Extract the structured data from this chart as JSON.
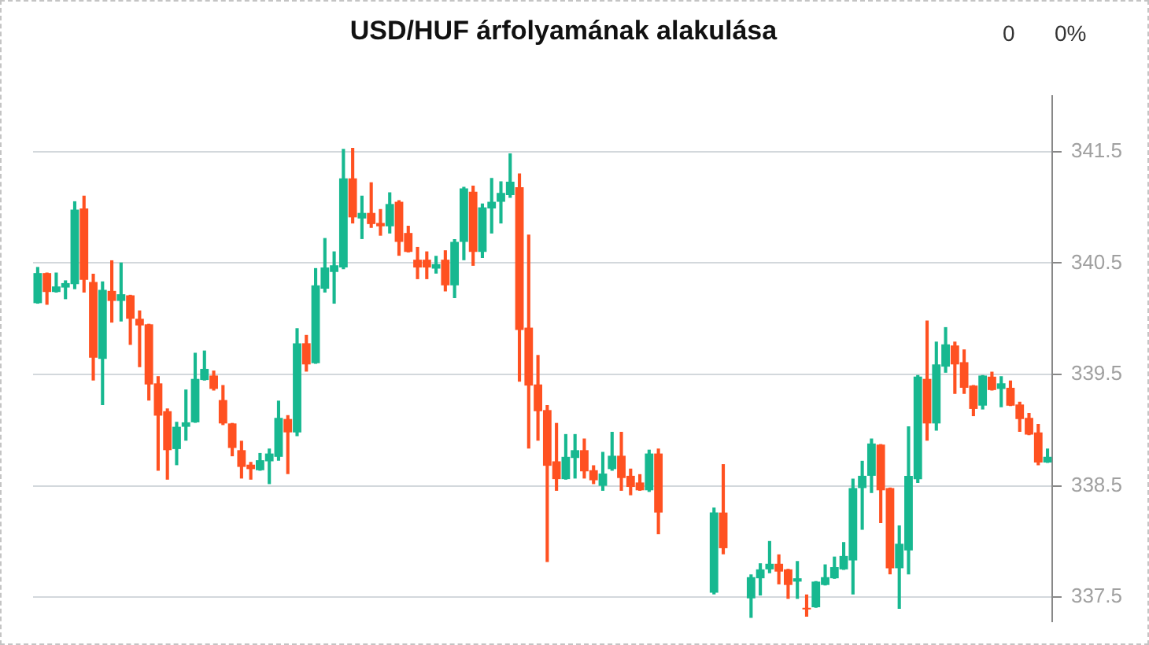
{
  "chart_data": {
    "type": "candlestick",
    "title": "USD/HUF árfolyamának alakulása",
    "annotations": [
      "0",
      "0%"
    ],
    "categories": [
      null,
      null,
      null,
      null,
      null,
      null,
      null,
      null,
      null,
      null,
      null,
      null,
      null,
      null,
      null,
      null,
      null,
      null,
      null,
      null,
      null,
      null,
      null,
      null,
      null,
      null,
      null,
      null,
      null,
      null,
      null,
      null,
      null,
      null,
      null,
      null,
      null,
      null,
      null,
      null,
      null,
      null,
      null,
      null,
      null,
      null,
      null,
      null,
      null,
      null,
      null,
      null,
      null,
      null,
      null,
      null,
      null,
      null,
      null,
      null,
      null,
      null,
      null,
      null,
      null,
      null,
      null,
      null,
      null,
      null,
      null,
      null,
      null,
      null,
      null,
      null,
      null,
      null,
      null,
      null,
      null,
      null,
      null,
      null,
      null,
      null,
      null,
      null,
      null,
      null,
      null,
      null,
      null,
      null,
      null,
      null,
      null,
      null,
      null,
      null,
      null,
      null,
      null,
      null,
      null,
      null,
      null,
      null,
      null,
      null
    ],
    "ohlc": [
      [
        340.14,
        340.46,
        340.14,
        340.41
      ],
      [
        340.41,
        340.41,
        340.13,
        340.24
      ],
      [
        340.24,
        340.41,
        340.24,
        340.29
      ],
      [
        340.28,
        340.34,
        340.18,
        340.32
      ],
      [
        340.31,
        341.05,
        340.27,
        340.98
      ],
      [
        340.99,
        341.1,
        340.24,
        340.35
      ],
      [
        340.33,
        340.4,
        339.45,
        339.65
      ],
      [
        339.64,
        340.33,
        339.23,
        340.26
      ],
      [
        340.25,
        340.52,
        339.97,
        340.16
      ],
      [
        340.16,
        340.5,
        339.98,
        340.22
      ],
      [
        340.21,
        340.21,
        339.77,
        340.0
      ],
      [
        340.0,
        340.07,
        339.57,
        339.94
      ],
      [
        339.95,
        339.95,
        339.27,
        339.41
      ],
      [
        339.42,
        339.48,
        338.64,
        339.13
      ],
      [
        339.17,
        339.19,
        338.56,
        338.82
      ],
      [
        338.83,
        339.07,
        338.69,
        339.03
      ],
      [
        339.03,
        339.36,
        338.91,
        339.07
      ],
      [
        339.07,
        339.69,
        339.07,
        339.46
      ],
      [
        339.45,
        339.71,
        339.45,
        339.55
      ],
      [
        339.49,
        339.53,
        339.36,
        339.37
      ],
      [
        339.27,
        339.4,
        339.05,
        339.06
      ],
      [
        339.06,
        339.06,
        338.77,
        338.84
      ],
      [
        338.82,
        338.9,
        338.57,
        338.67
      ],
      [
        338.69,
        338.71,
        338.56,
        338.65
      ],
      [
        338.64,
        338.79,
        338.64,
        338.73
      ],
      [
        338.72,
        338.83,
        338.52,
        338.79
      ],
      [
        338.76,
        339.26,
        338.73,
        339.11
      ],
      [
        339.1,
        339.13,
        338.61,
        338.98
      ],
      [
        338.98,
        339.91,
        338.95,
        339.78
      ],
      [
        339.78,
        339.85,
        339.53,
        339.59
      ],
      [
        339.6,
        340.45,
        339.6,
        340.3
      ],
      [
        340.27,
        340.72,
        340.24,
        340.46
      ],
      [
        340.42,
        340.6,
        340.14,
        340.48
      ],
      [
        340.46,
        341.52,
        340.45,
        341.26
      ],
      [
        341.26,
        341.53,
        340.86,
        340.91
      ],
      [
        340.9,
        341.1,
        340.72,
        340.95
      ],
      [
        340.95,
        341.22,
        340.82,
        340.85
      ],
      [
        340.86,
        340.98,
        340.75,
        340.83
      ],
      [
        340.83,
        341.13,
        340.77,
        341.03
      ],
      [
        341.05,
        341.06,
        340.57,
        340.69
      ],
      [
        340.77,
        340.83,
        340.6,
        340.6
      ],
      [
        340.53,
        340.64,
        340.36,
        340.46
      ],
      [
        340.53,
        340.6,
        340.36,
        340.46
      ],
      [
        340.45,
        340.56,
        340.41,
        340.49
      ],
      [
        340.53,
        340.61,
        340.25,
        340.3
      ],
      [
        340.3,
        340.71,
        340.19,
        340.69
      ],
      [
        340.69,
        341.18,
        340.53,
        341.17
      ],
      [
        341.14,
        341.19,
        340.48,
        340.6
      ],
      [
        340.6,
        341.03,
        340.55,
        341.0
      ],
      [
        340.99,
        341.26,
        340.77,
        341.05
      ],
      [
        341.05,
        341.23,
        340.86,
        341.13
      ],
      [
        341.11,
        341.48,
        341.09,
        341.23
      ],
      [
        341.18,
        341.3,
        339.44,
        339.9
      ],
      [
        339.92,
        340.75,
        338.84,
        339.4
      ],
      [
        339.41,
        339.67,
        338.91,
        339.17
      ],
      [
        339.18,
        339.22,
        337.82,
        338.68
      ],
      [
        338.72,
        339.06,
        338.46,
        338.56
      ],
      [
        338.56,
        338.96,
        338.56,
        338.76
      ],
      [
        338.75,
        338.96,
        338.57,
        338.82
      ],
      [
        338.82,
        338.92,
        338.57,
        338.63
      ],
      [
        338.64,
        338.68,
        338.52,
        338.55
      ],
      [
        338.5,
        338.8,
        338.46,
        338.61
      ],
      [
        338.65,
        338.98,
        338.64,
        338.77
      ],
      [
        338.77,
        338.98,
        338.46,
        338.57
      ],
      [
        338.59,
        338.65,
        338.42,
        338.49
      ],
      [
        338.53,
        338.6,
        338.46,
        338.46
      ],
      [
        338.46,
        338.82,
        338.45,
        338.79
      ],
      [
        338.79,
        338.83,
        338.07,
        338.26
      ],
      null,
      null,
      null,
      null,
      null,
      [
        337.54,
        338.3,
        337.53,
        338.26
      ],
      [
        338.26,
        338.69,
        337.89,
        337.94
      ],
      null,
      null,
      [
        337.49,
        337.7,
        337.32,
        337.68
      ],
      [
        337.67,
        337.8,
        337.52,
        337.75
      ],
      [
        337.75,
        338.0,
        337.72,
        337.8
      ],
      [
        337.8,
        337.88,
        337.62,
        337.73
      ],
      [
        337.75,
        337.75,
        337.49,
        337.61
      ],
      [
        337.64,
        337.82,
        337.49,
        337.67
      ],
      [
        337.4,
        337.52,
        337.33,
        337.39
      ],
      [
        337.41,
        337.64,
        337.41,
        337.64
      ],
      [
        337.61,
        337.79,
        337.61,
        337.68
      ],
      [
        337.67,
        337.86,
        337.67,
        337.77
      ],
      [
        337.75,
        337.99,
        337.75,
        337.87
      ],
      [
        337.83,
        338.56,
        337.53,
        338.48
      ],
      [
        338.48,
        338.72,
        338.11,
        338.59
      ],
      [
        338.59,
        338.92,
        338.44,
        338.88
      ],
      [
        338.87,
        338.87,
        338.17,
        338.46
      ],
      [
        338.48,
        338.48,
        337.71,
        337.76
      ],
      [
        337.76,
        338.14,
        337.4,
        337.98
      ],
      [
        337.92,
        339.03,
        337.71,
        338.59
      ],
      [
        338.56,
        339.49,
        338.53,
        339.48
      ],
      [
        339.46,
        339.98,
        338.91,
        339.06
      ],
      [
        339.06,
        339.79,
        339.0,
        339.59
      ],
      [
        339.57,
        339.92,
        339.52,
        339.77
      ],
      [
        339.76,
        339.79,
        339.33,
        339.59
      ],
      [
        339.61,
        339.72,
        339.33,
        339.38
      ],
      [
        339.4,
        339.4,
        339.13,
        339.19
      ],
      [
        339.22,
        339.49,
        339.19,
        339.49
      ],
      [
        339.48,
        339.52,
        339.36,
        339.36
      ],
      [
        339.37,
        339.48,
        339.21,
        339.42
      ],
      [
        339.38,
        339.44,
        339.22,
        339.22
      ],
      [
        339.23,
        339.25,
        338.99,
        339.1
      ],
      [
        339.11,
        339.15,
        338.96,
        338.96
      ],
      [
        338.98,
        339.05,
        338.69,
        338.71
      ],
      [
        338.71,
        338.83,
        338.71,
        338.76
      ]
    ],
    "colors": [
      "#17b890",
      "#ff5121",
      "#17b890",
      "#17b890",
      "#17b890",
      "#ff5121",
      "#ff5121",
      "#17b890",
      "#ff5121",
      "#17b890",
      "#ff5121",
      "#ff5121",
      "#ff5121",
      "#ff5121",
      "#ff5121",
      "#17b890",
      "#17b890",
      "#17b890",
      "#17b890",
      "#ff5121",
      "#ff5121",
      "#ff5121",
      "#ff5121",
      "#ff5121",
      "#17b890",
      "#17b890",
      "#17b890",
      "#ff5121",
      "#17b890",
      "#ff5121",
      "#17b890",
      "#17b890",
      "#17b890",
      "#17b890",
      "#ff5121",
      "#17b890",
      "#ff5121",
      "#ff5121",
      "#17b890",
      "#ff5121",
      "#ff5121",
      "#ff5121",
      "#ff5121",
      "#17b890",
      "#ff5121",
      "#17b890",
      "#17b890",
      "#ff5121",
      "#17b890",
      "#17b890",
      "#17b890",
      "#17b890",
      "#ff5121",
      "#ff5121",
      "#ff5121",
      "#ff5121",
      "#ff5121",
      "#17b890",
      "#17b890",
      "#ff5121",
      "#ff5121",
      "#17b890",
      "#17b890",
      "#ff5121",
      "#ff5121",
      "#ff5121",
      "#17b890",
      "#ff5121",
      null,
      null,
      null,
      null,
      null,
      "#17b890",
      "#ff5121",
      null,
      null,
      "#17b890",
      "#17b890",
      "#17b890",
      "#ff5121",
      "#ff5121",
      "#17b890",
      "#ff5121",
      "#17b890",
      "#17b890",
      "#17b890",
      "#17b890",
      "#17b890",
      "#17b890",
      "#17b890",
      "#ff5121",
      "#ff5121",
      "#17b890",
      "#17b890",
      "#17b890",
      "#ff5121",
      "#17b890",
      "#17b890",
      "#ff5121",
      "#ff5121",
      "#ff5121",
      "#17b890",
      "#ff5121",
      "#17b890",
      "#ff5121",
      "#ff5121",
      "#ff5121",
      "#ff5121",
      "#17b890"
    ],
    "ylim": [
      337.28,
      342.0
    ],
    "yticks": [
      337.5,
      338.5,
      339.5,
      340.5,
      341.5
    ],
    "grid": "y",
    "tick_labels": "y"
  }
}
